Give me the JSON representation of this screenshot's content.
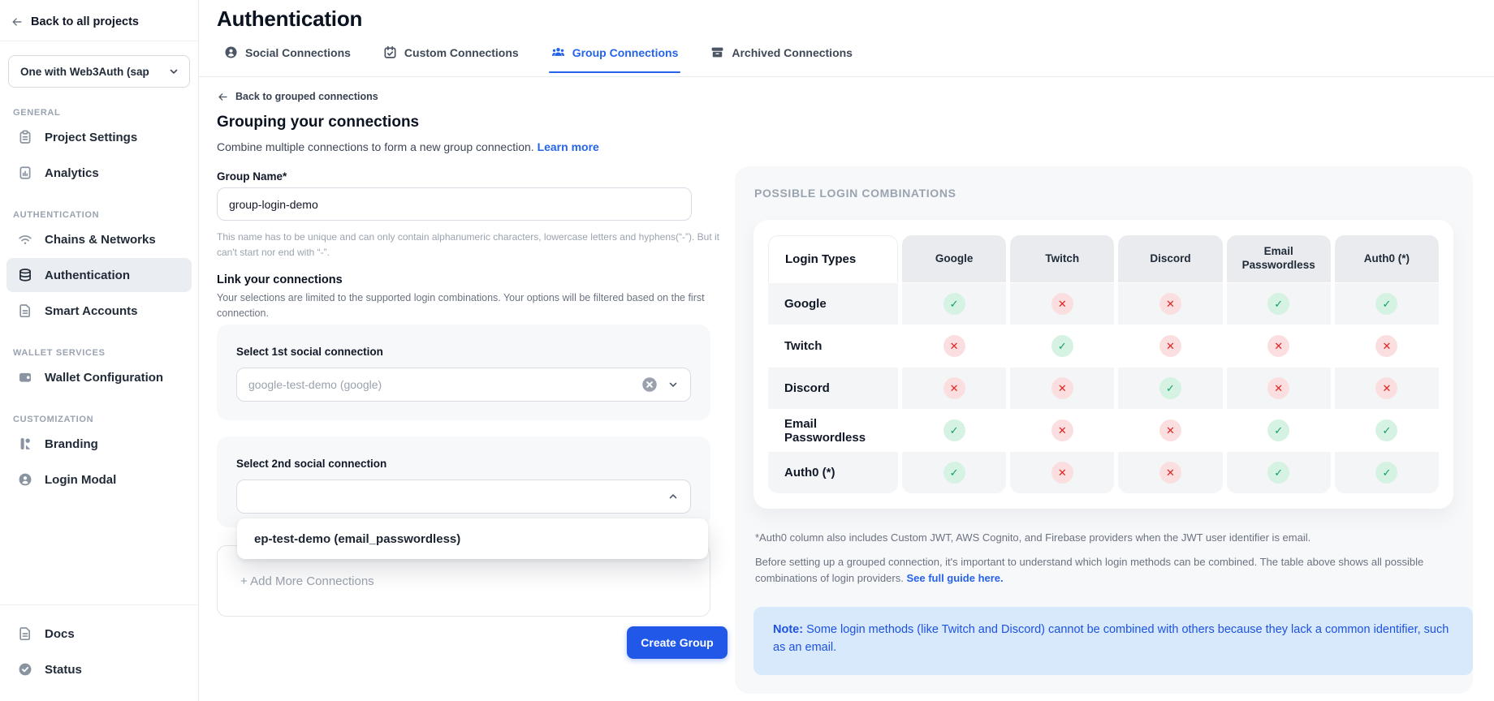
{
  "sidebar": {
    "back_label": "Back to all projects",
    "project_selector": {
      "value": "One with Web3Auth (sap",
      "icon": "chevron-down-icon"
    },
    "sections": [
      {
        "label": "GENERAL",
        "items": [
          {
            "label": "Project Settings",
            "icon": "clipboard-icon",
            "active": false
          },
          {
            "label": "Analytics",
            "icon": "analytics-icon",
            "active": false
          }
        ]
      },
      {
        "label": "AUTHENTICATION",
        "items": [
          {
            "label": "Chains & Networks",
            "icon": "wifi-icon",
            "active": false
          },
          {
            "label": "Authentication",
            "icon": "stack-icon",
            "active": true
          },
          {
            "label": "Smart Accounts",
            "icon": "document-icon",
            "active": false
          }
        ]
      },
      {
        "label": "WALLET SERVICES",
        "items": [
          {
            "label": "Wallet Configuration",
            "icon": "wallet-icon",
            "active": false
          }
        ]
      },
      {
        "label": "CUSTOMIZATION",
        "items": [
          {
            "label": "Branding",
            "icon": "branding-icon",
            "active": false
          },
          {
            "label": "Login Modal",
            "icon": "user-circle-icon",
            "active": false
          }
        ]
      }
    ],
    "footer_items": [
      {
        "label": "Docs",
        "icon": "document-icon"
      },
      {
        "label": "Status",
        "icon": "check-circle-icon"
      }
    ]
  },
  "header": {
    "title": "Authentication",
    "tabs": [
      {
        "label": "Social Connections",
        "icon": "person-circle-icon",
        "active": false
      },
      {
        "label": "Custom Connections",
        "icon": "badge-icon",
        "active": false
      },
      {
        "label": "Group Connections",
        "icon": "users-group-icon",
        "active": true
      },
      {
        "label": "Archived Connections",
        "icon": "archive-icon",
        "active": false
      }
    ]
  },
  "form": {
    "back_link": "Back to grouped connections",
    "heading": "Grouping your connections",
    "subheading": "Combine multiple connections to form a new group connection.",
    "learn_more": "Learn more",
    "group_name_label": "Group Name*",
    "group_name_value": "group-login-demo",
    "group_name_help": "This name has to be unique and can only contain alphanumeric characters, lowercase letters and hyphens(“-”). But it can't start nor end with “-”.",
    "link_heading": "Link your connections",
    "link_help": "Your selections are limited to the supported login combinations. Your options will be filtered based on the first connection.",
    "first_select": {
      "label": "Select 1st social connection",
      "value": "google-test-demo (google)"
    },
    "second_select": {
      "label": "Select 2nd social connection",
      "value": ""
    },
    "dropdown_option": "ep-test-demo (email_passwordless)",
    "add_more_label": "+ Add More Connections",
    "create_button": "Create Group"
  },
  "combinations": {
    "panel_title": "POSSIBLE LOGIN COMBINATIONS",
    "corner_header": "Login Types",
    "columns": [
      "Google",
      "Twitch",
      "Discord",
      "Email Passwordless",
      "Auth0 (*)"
    ],
    "rows": [
      {
        "label": "Google",
        "values": [
          "yes",
          "no",
          "no",
          "yes",
          "yes"
        ]
      },
      {
        "label": "Twitch",
        "values": [
          "no",
          "yes",
          "no",
          "no",
          "no"
        ]
      },
      {
        "label": "Discord",
        "values": [
          "no",
          "no",
          "yes",
          "no",
          "no"
        ]
      },
      {
        "label": "Email Passwordless",
        "values": [
          "yes",
          "no",
          "no",
          "yes",
          "yes"
        ]
      },
      {
        "label": "Auth0 (*)",
        "values": [
          "yes",
          "no",
          "no",
          "yes",
          "yes"
        ]
      }
    ],
    "check_symbol": "✓",
    "cross_symbol": "✕",
    "footnote1": "*Auth0 column also includes Custom JWT, AWS Cognito, and Firebase providers when the JWT user identifier is email.",
    "footnote2": "Before setting up a grouped connection, it's important to understand which login methods can be combined. The table above shows all possible combinations of login providers.",
    "footnote2_link": "See full guide here.",
    "note_prefix": "Note:",
    "note_text": "Some login methods (like Twitch and Discord) cannot be combined with others because they lack a common identifier, such as an email."
  },
  "colors": {
    "accent_blue": "#2563eb",
    "button_blue": "#2158e8",
    "check_green": "#129d63",
    "cross_red": "#e02424",
    "note_bg": "#d8e9fc"
  }
}
